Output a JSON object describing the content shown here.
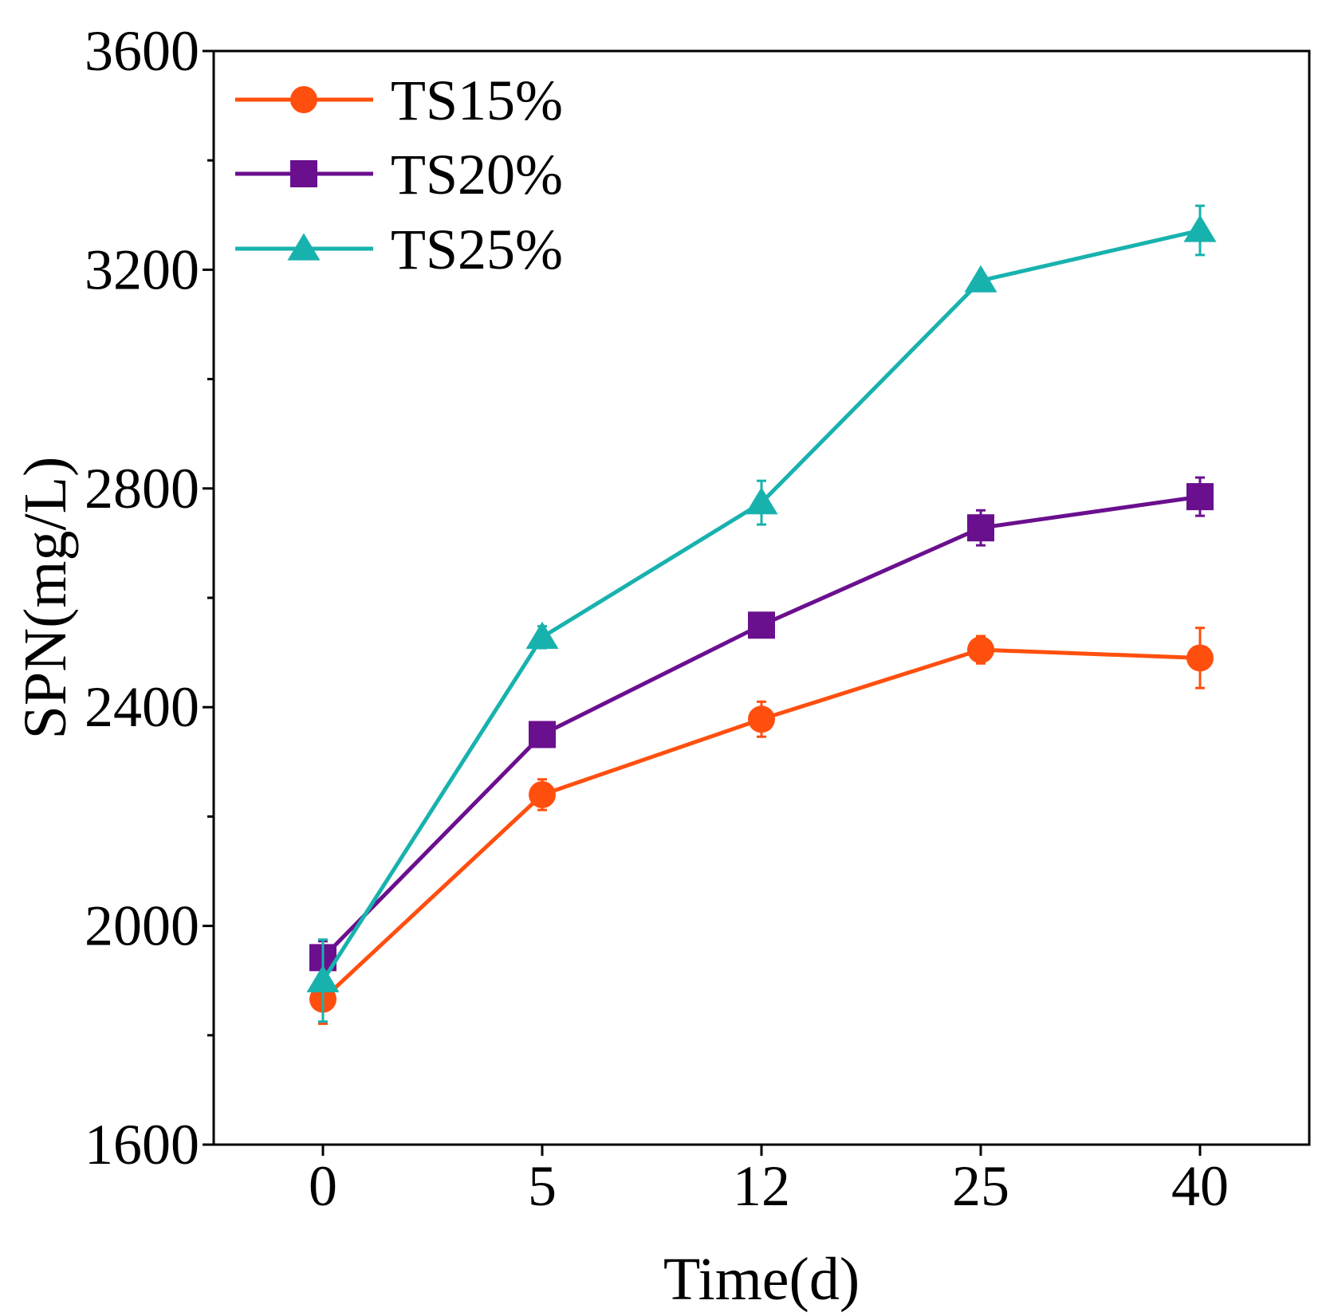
{
  "chart_data": {
    "type": "line",
    "title": "",
    "xlabel": "Time(d)",
    "ylabel": "SPN(mg/L)",
    "categories": [
      "0",
      "5",
      "12",
      "25",
      "40"
    ],
    "ylim": [
      1600,
      3600
    ],
    "yticks": [
      "1600",
      "2000",
      "2400",
      "2800",
      "3200",
      "3600"
    ],
    "y_minor_step": 200,
    "grid": false,
    "legend_position": "top-left",
    "series": [
      {
        "name": "TS15%",
        "color": "#FF4F0F",
        "marker": "circle",
        "values": [
          1866,
          2240,
          2378,
          2505,
          2490
        ],
        "errors": [
          45,
          28,
          32,
          25,
          55
        ]
      },
      {
        "name": "TS20%",
        "color": "#6A0F8E",
        "marker": "square",
        "values": [
          1942,
          2350,
          2550,
          2728,
          2785
        ],
        "errors": [
          30,
          15,
          20,
          32,
          35
        ]
      },
      {
        "name": "TS25%",
        "color": "#18B2AE",
        "marker": "triangle",
        "values": [
          1900,
          2528,
          2774,
          3180,
          3272
        ],
        "errors": [
          75,
          20,
          40,
          10,
          45
        ]
      }
    ]
  }
}
